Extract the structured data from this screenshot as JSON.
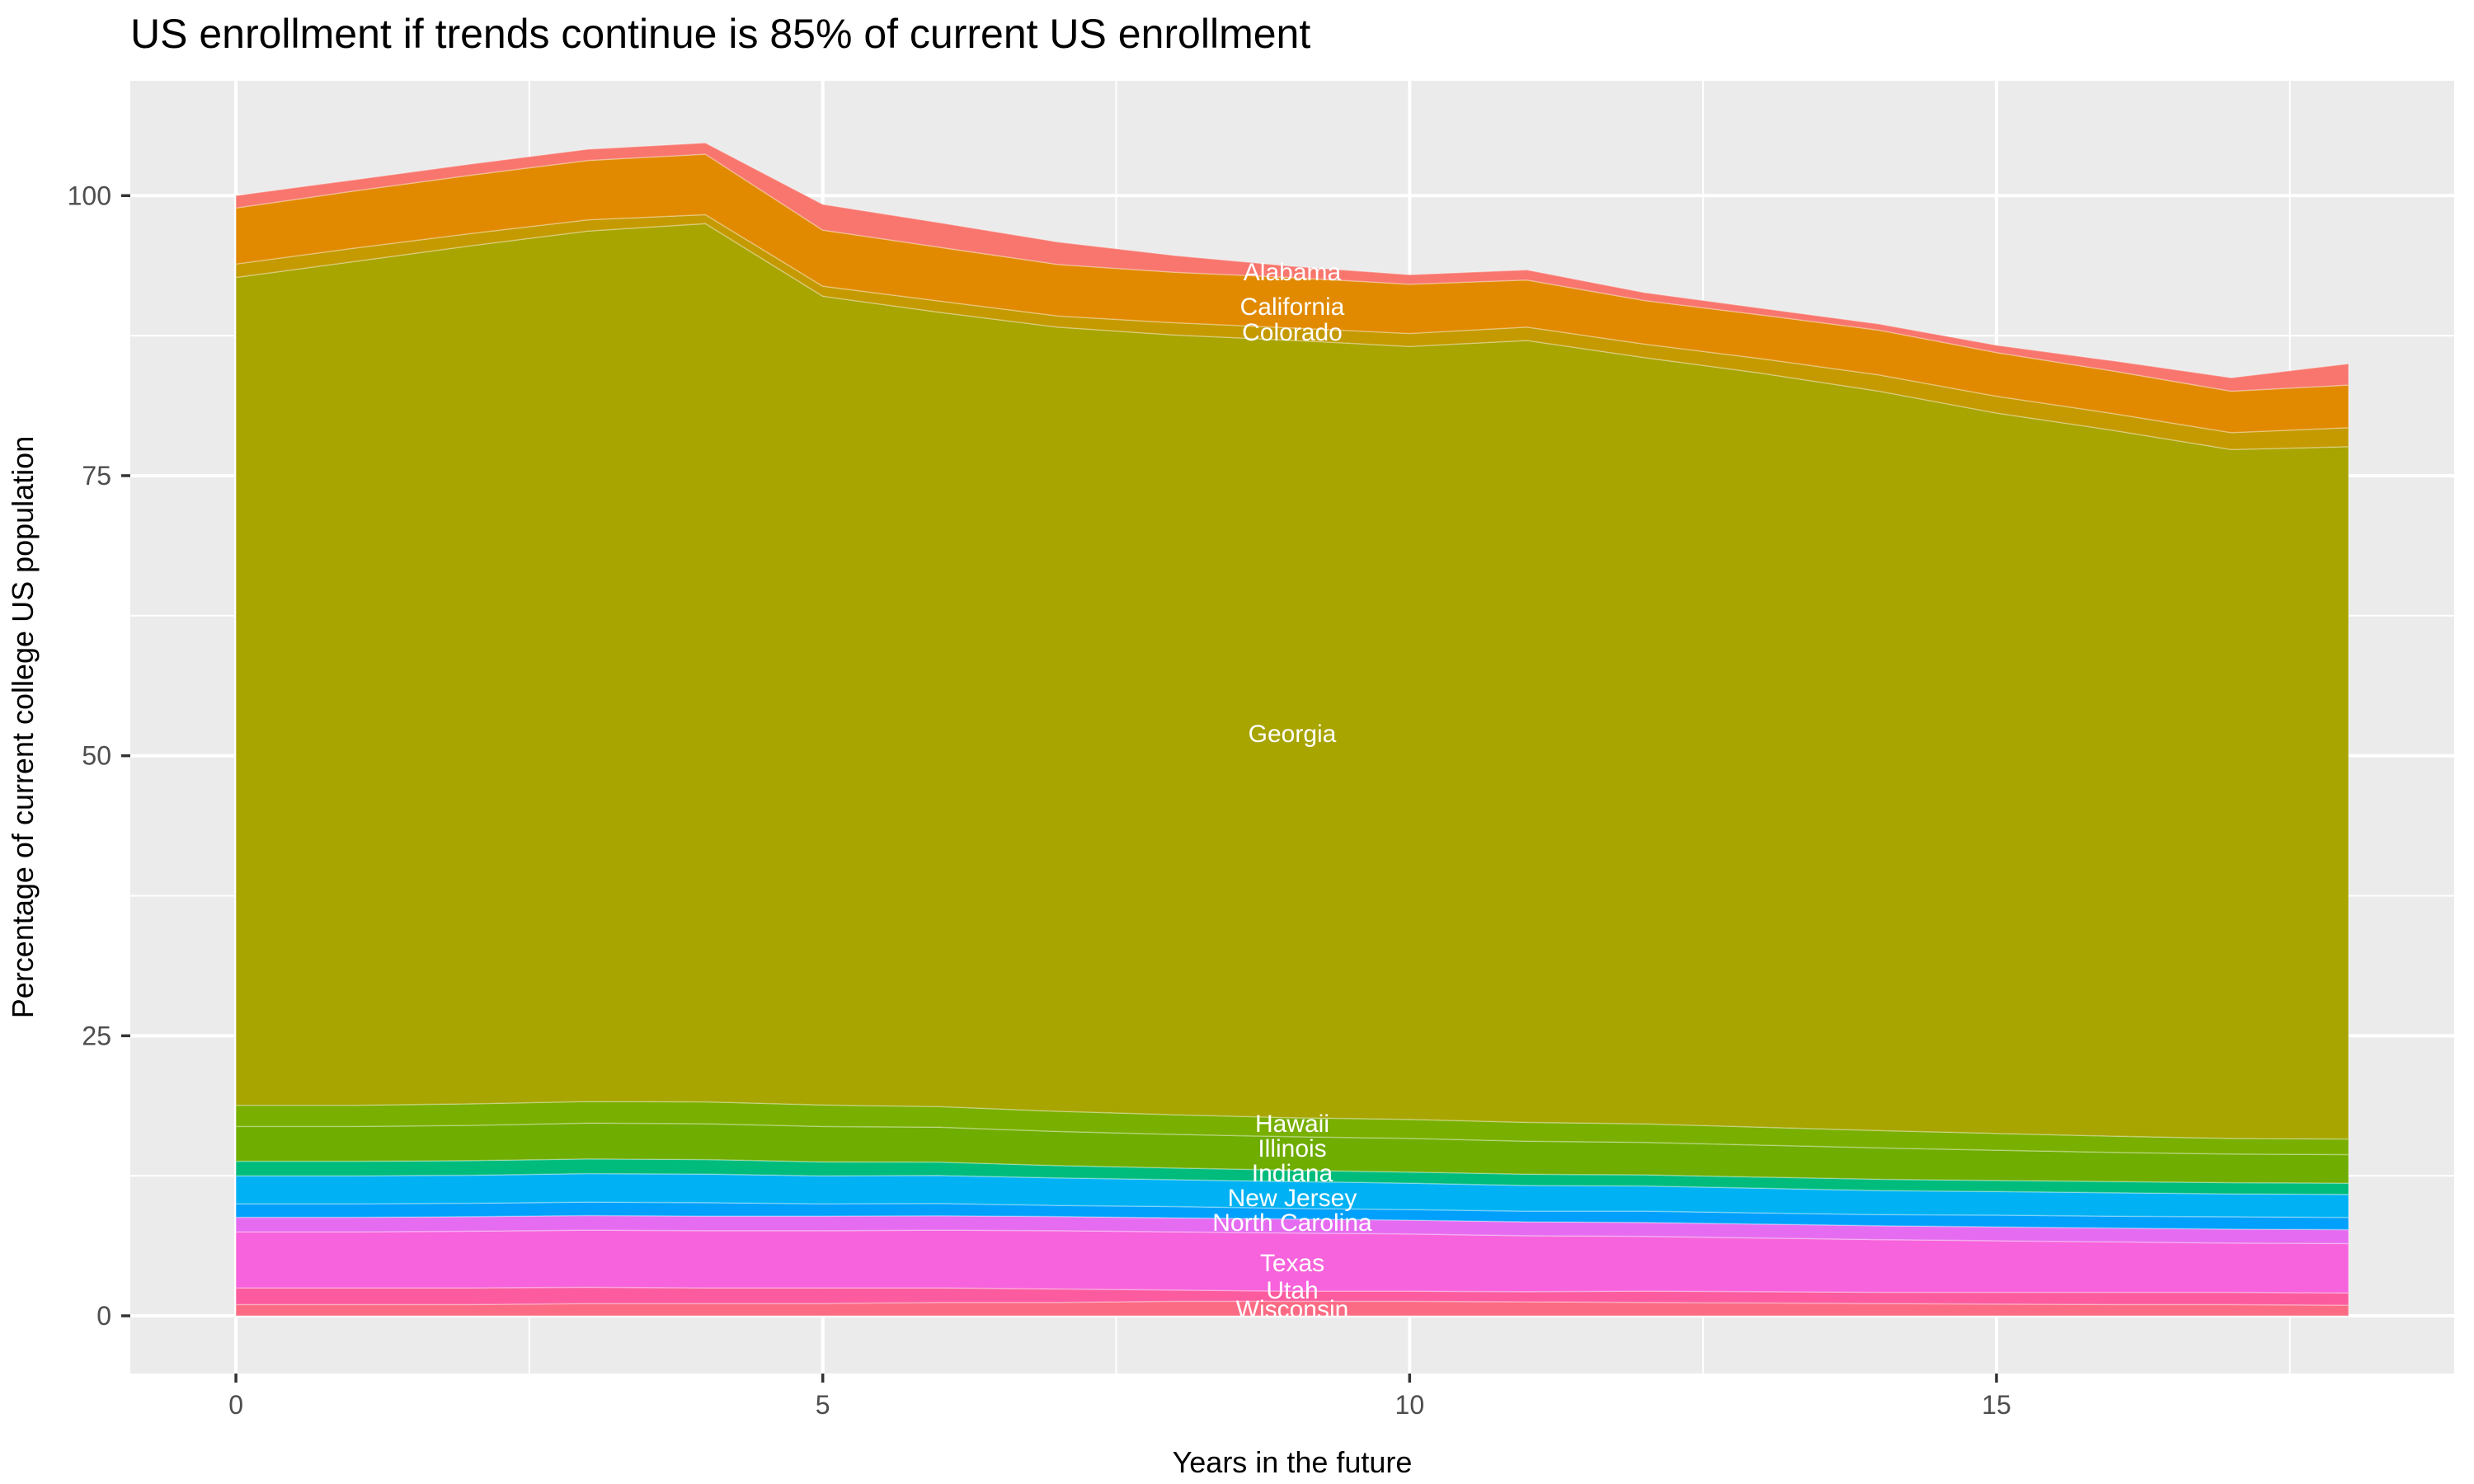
{
  "chart_data": {
    "type": "area",
    "stacked": true,
    "title": "US enrollment if trends continue is 85% of current US enrollment",
    "xlabel": "Years in the future",
    "ylabel": "Percentage of current college US population",
    "xlim": [
      -0.9,
      18.9
    ],
    "ylim": [
      -5.15,
      110.25
    ],
    "grid": true,
    "legend_position": "none",
    "panel_bg": "#EBEBEB",
    "grid_color": "#FFFFFF",
    "tick_color": "#333333",
    "tick_text_color": "#4D4D4D",
    "x": [
      0,
      1,
      2,
      3,
      4,
      5,
      6,
      7,
      8,
      9,
      10,
      11,
      12,
      13,
      14,
      15,
      16,
      17,
      18
    ],
    "x_ticks": [
      {
        "v": 0,
        "label": "0"
      },
      {
        "v": 5,
        "label": "5"
      },
      {
        "v": 10,
        "label": "10"
      },
      {
        "v": 15,
        "label": "15"
      }
    ],
    "y_ticks": [
      {
        "v": 0,
        "label": "0"
      },
      {
        "v": 25,
        "label": "25"
      },
      {
        "v": 50,
        "label": "50"
      },
      {
        "v": 75,
        "label": "75"
      },
      {
        "v": 100,
        "label": "100"
      }
    ],
    "x_minor": [
      2.5,
      7.5,
      12.5,
      17.5
    ],
    "y_minor": [
      12.5,
      37.5,
      62.5,
      87.5
    ],
    "stack_order": "bottom_to_top",
    "series": [
      {
        "name": "Wisconsin",
        "color": "#FC6B84",
        "values": [
          1.0,
          1.0,
          1.0,
          1.1,
          1.1,
          1.1,
          1.2,
          1.2,
          1.3,
          1.3,
          1.3,
          1.25,
          1.2,
          1.15,
          1.1,
          1.05,
          1.0,
          1.0,
          0.95
        ],
        "label": {
          "text": "Wisconsin",
          "x": 9,
          "y": 0.59
        }
      },
      {
        "name": "Utah",
        "color": "#FC5C9F",
        "values": [
          1.5,
          1.5,
          1.5,
          1.45,
          1.4,
          1.4,
          1.3,
          1.2,
          1.0,
          0.9,
          0.9,
          0.9,
          1.0,
          1.0,
          1.0,
          1.05,
          1.1,
          1.1,
          1.1
        ],
        "label": {
          "text": "Utah",
          "x": 9,
          "y": 2.28
        }
      },
      {
        "name": "Texas",
        "color": "#F763DC",
        "values": [
          5.0,
          5.0,
          5.05,
          5.1,
          5.1,
          5.1,
          5.15,
          5.2,
          5.2,
          5.2,
          5.1,
          5.0,
          4.9,
          4.8,
          4.7,
          4.6,
          4.5,
          4.4,
          4.4
        ],
        "label": {
          "text": "Texas",
          "x": 9,
          "y": 4.71
        }
      },
      {
        "name": "North Carolina",
        "color": "#E56CF0",
        "values": [
          1.3,
          1.3,
          1.3,
          1.3,
          1.3,
          1.3,
          1.28,
          1.26,
          1.25,
          1.24,
          1.24,
          1.24,
          1.24,
          1.24,
          1.24,
          1.24,
          1.24,
          1.24,
          1.24
        ],
        "label": {
          "text": "North Carolina",
          "x": 9,
          "y": 8.32
        }
      },
      {
        "name": "",
        "color": "#00A0FC",
        "values": [
          1.2,
          1.2,
          1.2,
          1.2,
          1.2,
          1.1,
          1.1,
          1.0,
          1.0,
          0.95,
          0.95,
          0.95,
          1.0,
          1.0,
          1.0,
          1.05,
          1.05,
          1.1,
          1.1
        ],
        "label": null
      },
      {
        "name": "New Jersey",
        "color": "#00B2F3",
        "values": [
          2.5,
          2.5,
          2.5,
          2.55,
          2.55,
          2.5,
          2.5,
          2.45,
          2.4,
          2.4,
          2.35,
          2.3,
          2.25,
          2.2,
          2.15,
          2.1,
          2.1,
          2.05,
          2.05
        ],
        "label": {
          "text": "New Jersey",
          "x": 9,
          "y": 10.52
        }
      },
      {
        "name": "Indiana",
        "color": "#00BC7C",
        "values": [
          1.3,
          1.3,
          1.3,
          1.3,
          1.3,
          1.25,
          1.2,
          1.1,
          1.05,
          1.0,
          1.0,
          1.0,
          1.0,
          1.0,
          1.0,
          1.0,
          1.0,
          1.0,
          1.0
        ],
        "label": {
          "text": "Indiana",
          "x": 9,
          "y": 12.73
        }
      },
      {
        "name": "Illinois",
        "color": "#6FAD00",
        "values": [
          3.1,
          3.1,
          3.15,
          3.2,
          3.2,
          3.15,
          3.1,
          3.05,
          3.0,
          3.0,
          3.0,
          2.95,
          2.9,
          2.85,
          2.8,
          2.7,
          2.6,
          2.55,
          2.55
        ],
        "label": {
          "text": "Illinois",
          "x": 9,
          "y": 14.94
        }
      },
      {
        "name": "Hawaii",
        "color": "#79B000",
        "values": [
          1.9,
          1.9,
          1.92,
          1.94,
          1.95,
          1.92,
          1.85,
          1.8,
          1.75,
          1.7,
          1.7,
          1.68,
          1.65,
          1.6,
          1.55,
          1.5,
          1.45,
          1.4,
          1.4
        ],
        "label": {
          "text": "Hawaii",
          "x": 9,
          "y": 17.14
        }
      },
      {
        "name": "Georgia",
        "color": "#A8A400",
        "values": [
          73.9,
          75.3,
          76.6,
          77.7,
          78.4,
          72.2,
          70.9,
          70.0,
          69.6,
          69.4,
          69.0,
          69.8,
          68.4,
          67.3,
          66.0,
          64.3,
          63.0,
          61.5,
          61.8
        ],
        "label": {
          "text": "Georgia",
          "x": 9,
          "y": 51.95
        }
      },
      {
        "name": "Colorado",
        "color": "#C49A00",
        "values": [
          1.2,
          1.2,
          1.1,
          1.0,
          0.8,
          0.9,
          1.0,
          1.0,
          1.1,
          1.1,
          1.15,
          1.2,
          1.2,
          1.3,
          1.45,
          1.5,
          1.5,
          1.5,
          1.7
        ],
        "label": {
          "text": "Colorado",
          "x": 9,
          "y": 87.79
        }
      },
      {
        "name": "California",
        "color": "#E18A00",
        "values": [
          5.0,
          5.1,
          5.2,
          5.3,
          5.4,
          5.0,
          4.8,
          4.6,
          4.5,
          4.5,
          4.4,
          4.2,
          3.9,
          3.9,
          4.0,
          3.9,
          3.8,
          3.7,
          3.8
        ],
        "label": {
          "text": "California",
          "x": 9,
          "y": 90.07
        }
      },
      {
        "name": "Alabama",
        "color": "#F8766D",
        "values": [
          1.1,
          1.0,
          1.0,
          1.0,
          1.0,
          2.3,
          2.2,
          2.0,
          1.5,
          1.0,
          0.85,
          0.9,
          0.7,
          0.6,
          0.55,
          0.65,
          0.9,
          1.2,
          1.9
        ],
        "label": {
          "text": "Alabama",
          "x": 9,
          "y": 93.16
        }
      }
    ]
  }
}
